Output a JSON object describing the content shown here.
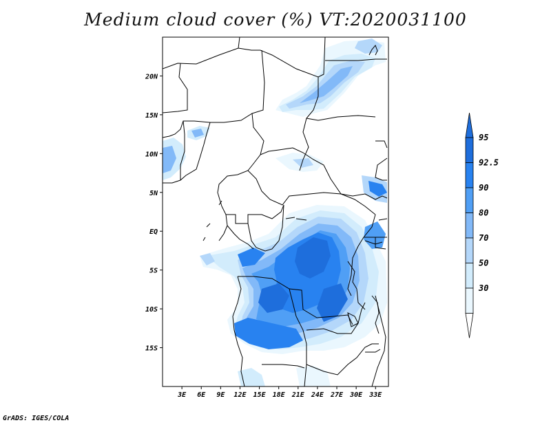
{
  "title": "Medium cloud cover (%) VT:2020031100",
  "credit": "GrADS: IGES/COLA",
  "map": {
    "lon_range": [
      0,
      35
    ],
    "lat_range": [
      -20,
      25
    ],
    "lat_ticks": [
      {
        "value": 20,
        "label": "20N"
      },
      {
        "value": 15,
        "label": "15N"
      },
      {
        "value": 10,
        "label": "10N"
      },
      {
        "value": 5,
        "label": "5N"
      },
      {
        "value": 0,
        "label": "EQ"
      },
      {
        "value": -5,
        "label": "5S"
      },
      {
        "value": -10,
        "label": "10S"
      },
      {
        "value": -15,
        "label": "15S"
      }
    ],
    "lon_ticks": [
      {
        "value": 3,
        "label": "3E"
      },
      {
        "value": 6,
        "label": "6E"
      },
      {
        "value": 9,
        "label": "9E"
      },
      {
        "value": 12,
        "label": "12E"
      },
      {
        "value": 15,
        "label": "15E"
      },
      {
        "value": 18,
        "label": "18E"
      },
      {
        "value": 21,
        "label": "21E"
      },
      {
        "value": 24,
        "label": "24E"
      },
      {
        "value": 27,
        "label": "27E"
      },
      {
        "value": 30,
        "label": "30E"
      },
      {
        "value": 33,
        "label": "33E"
      }
    ]
  },
  "legend": {
    "levels": [
      "95",
      "92.5",
      "90",
      "80",
      "70",
      "50",
      "30"
    ],
    "colors": [
      "#1e6edc",
      "#2882f0",
      "#509ff5",
      "#82b9f8",
      "#b4d7fa",
      "#d2ecfc",
      "#eaf7fe"
    ]
  }
}
